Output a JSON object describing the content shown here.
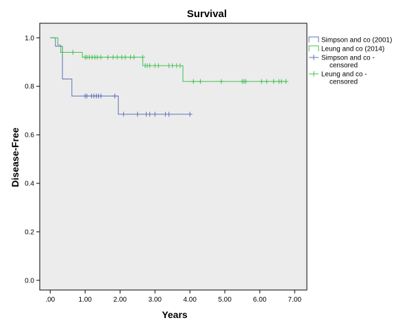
{
  "chart_data": {
    "type": "line",
    "step": true,
    "title": "Survival",
    "xlabel": "Years",
    "ylabel": "Disease-Free",
    "xlim": [
      -0.3,
      7.35
    ],
    "ylim": [
      -0.04,
      1.06
    ],
    "xticks": [
      0,
      1,
      2,
      3,
      4,
      5,
      6,
      7
    ],
    "xtick_labels": [
      ".00",
      "1.00",
      "2.00",
      "3.00",
      "4.00",
      "5.00",
      "6.00",
      "7.00"
    ],
    "yticks": [
      0,
      0.2,
      0.4,
      0.6,
      0.8,
      1.0
    ],
    "ytick_labels": [
      "0.0",
      "0.2",
      "0.4",
      "0.6",
      "0.8",
      "1.0"
    ],
    "grid": false,
    "background": "#ececec",
    "legend_position": "right",
    "series": [
      {
        "name": "Simpson and co (2001)",
        "color": "#5b6fb5",
        "steps": [
          [
            0.0,
            1.0
          ],
          [
            0.15,
            0.965
          ],
          [
            0.35,
            0.83
          ],
          [
            0.62,
            0.76
          ],
          [
            1.95,
            0.685
          ],
          [
            4.0,
            0.685
          ]
        ]
      },
      {
        "name": "Leung and co (2014)",
        "color": "#3fbf4f",
        "steps": [
          [
            0.0,
            1.0
          ],
          [
            0.22,
            0.97
          ],
          [
            0.3,
            0.94
          ],
          [
            0.92,
            0.92
          ],
          [
            2.65,
            0.885
          ],
          [
            3.8,
            0.82
          ],
          [
            6.75,
            0.82
          ]
        ]
      }
    ],
    "censored": [
      {
        "name": "Simpson and co - censored",
        "color": "#5b6fb5",
        "points": [
          [
            1.0,
            0.76
          ],
          [
            1.05,
            0.76
          ],
          [
            1.18,
            0.76
          ],
          [
            1.25,
            0.76
          ],
          [
            1.32,
            0.76
          ],
          [
            1.38,
            0.76
          ],
          [
            1.45,
            0.76
          ],
          [
            1.85,
            0.76
          ],
          [
            2.1,
            0.685
          ],
          [
            2.5,
            0.685
          ],
          [
            2.75,
            0.685
          ],
          [
            2.85,
            0.685
          ],
          [
            3.0,
            0.685
          ],
          [
            3.3,
            0.685
          ],
          [
            3.4,
            0.685
          ],
          [
            4.0,
            0.685
          ]
        ]
      },
      {
        "name": "Leung and co - censored",
        "color": "#3fbf4f",
        "points": [
          [
            0.35,
            0.94
          ],
          [
            0.65,
            0.94
          ],
          [
            1.0,
            0.92
          ],
          [
            1.05,
            0.92
          ],
          [
            1.12,
            0.92
          ],
          [
            1.2,
            0.92
          ],
          [
            1.28,
            0.92
          ],
          [
            1.35,
            0.92
          ],
          [
            1.45,
            0.92
          ],
          [
            1.65,
            0.92
          ],
          [
            1.8,
            0.92
          ],
          [
            1.92,
            0.92
          ],
          [
            2.05,
            0.92
          ],
          [
            2.15,
            0.92
          ],
          [
            2.3,
            0.92
          ],
          [
            2.4,
            0.92
          ],
          [
            2.65,
            0.92
          ],
          [
            2.72,
            0.885
          ],
          [
            2.78,
            0.885
          ],
          [
            2.85,
            0.885
          ],
          [
            3.0,
            0.885
          ],
          [
            3.1,
            0.885
          ],
          [
            3.4,
            0.885
          ],
          [
            3.5,
            0.885
          ],
          [
            3.62,
            0.885
          ],
          [
            3.72,
            0.885
          ],
          [
            4.1,
            0.82
          ],
          [
            4.3,
            0.82
          ],
          [
            4.9,
            0.82
          ],
          [
            5.5,
            0.82
          ],
          [
            5.55,
            0.82
          ],
          [
            5.6,
            0.82
          ],
          [
            6.05,
            0.82
          ],
          [
            6.2,
            0.82
          ],
          [
            6.4,
            0.82
          ],
          [
            6.55,
            0.82
          ],
          [
            6.62,
            0.82
          ],
          [
            6.75,
            0.82
          ]
        ]
      }
    ],
    "legend": [
      {
        "label": "Simpson and co (2001)",
        "kind": "line",
        "color": "#5b6fb5"
      },
      {
        "label": "Leung and co (2014)",
        "kind": "line",
        "color": "#3fbf4f"
      },
      {
        "label": "Simpson and co -",
        "label2": "censored",
        "kind": "marker",
        "color": "#5b6fb5"
      },
      {
        "label": "Leung and co -",
        "label2": "censored",
        "kind": "marker",
        "color": "#3fbf4f"
      }
    ]
  }
}
